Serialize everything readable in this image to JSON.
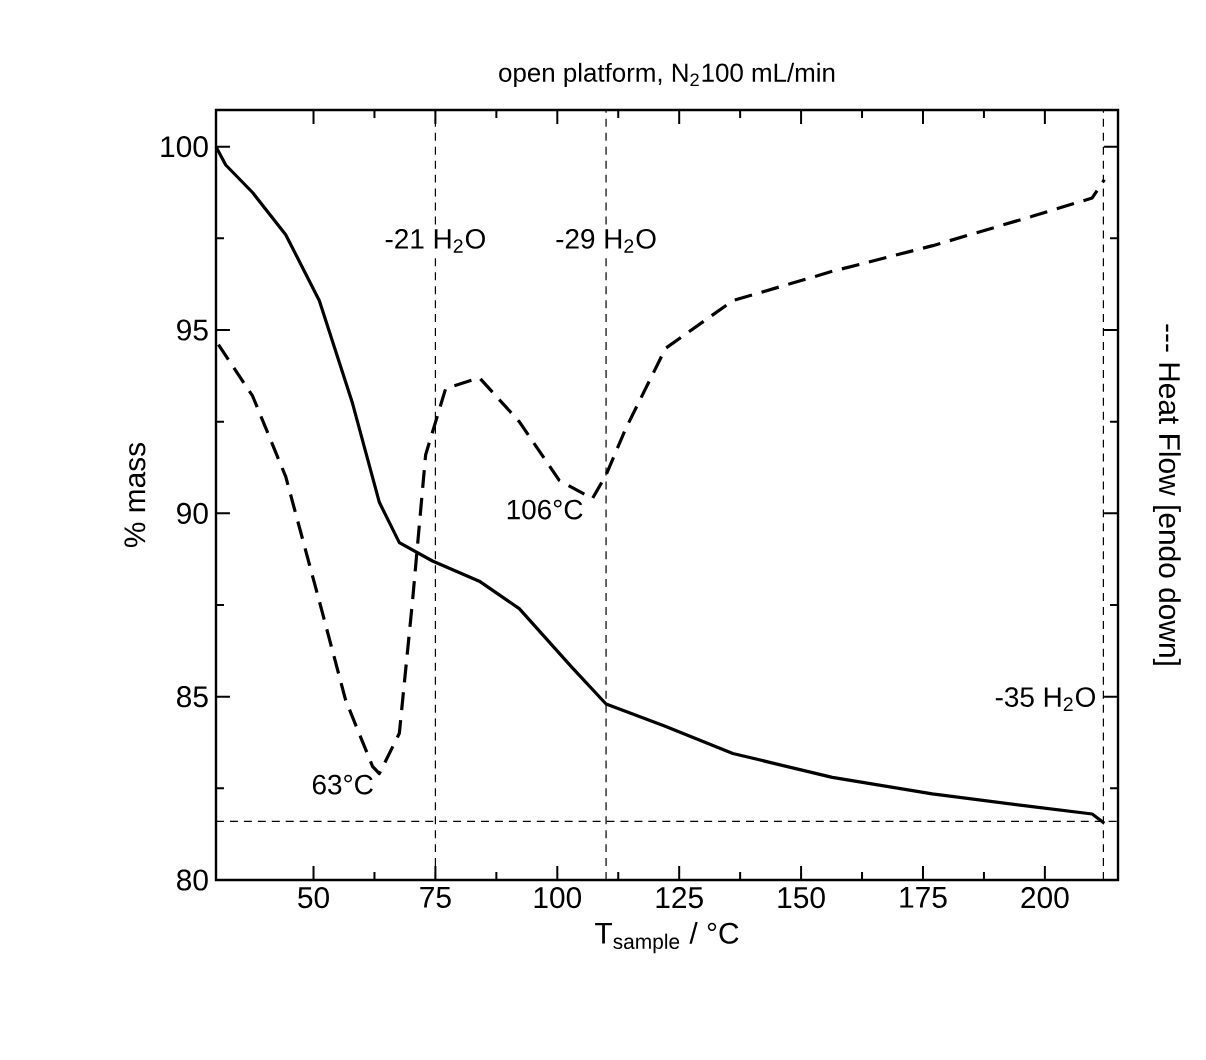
{
  "chart_data": {
    "type": "line",
    "title": "open platform, N$_{2}$100 mL/min",
    "xlabel": "T$_{sample}$ / °C",
    "ylabel": "% mass",
    "y2label": "--- Heat Flow [endo down]",
    "xlim": [
      30,
      215
    ],
    "ylim": [
      80,
      101
    ],
    "xticks": [
      50,
      75,
      100,
      125,
      150,
      175,
      200
    ],
    "yticks": [
      80,
      85,
      90,
      95,
      100
    ],
    "series": [
      {
        "color": "#000000",
        "line_style": "solid",
        "x": [
          30,
          32,
          37.5,
          44.3,
          51.2,
          58,
          63.5,
          67.6,
          74.4,
          84,
          92.2,
          103,
          110,
          122,
          136,
          156.4,
          176.9,
          197.4,
          209.7,
          212.2
        ],
        "values": [
          100,
          99.5,
          98.75,
          97.6,
          95.8,
          93.0,
          90.3,
          89.2,
          88.7,
          88.15,
          87.4,
          85.8,
          84.8,
          84.2,
          83.45,
          82.8,
          82.35,
          82.0,
          81.8,
          81.55
        ]
      },
      {
        "color": "#000000",
        "line_style": "dashed",
        "x": [
          30.5,
          37.5,
          44.3,
          51.2,
          56.6,
          62.1,
          63.5,
          67.6,
          70.3,
          73,
          77.1,
          84,
          92.2,
          100.4,
          107.2,
          110,
          114,
          122.2,
          136,
          156.4,
          177,
          197.4,
          209.7,
          212.2
        ],
        "values": [
          94.6,
          93.2,
          91.0,
          87.6,
          84.9,
          83.1,
          82.9,
          84.0,
          87.6,
          91.6,
          93.4,
          93.7,
          92.5,
          90.9,
          90.4,
          91.05,
          92.3,
          94.5,
          95.8,
          96.6,
          97.3,
          98.1,
          98.6,
          99.1
        ]
      }
    ],
    "ref_lines": [
      {
        "axis": "x",
        "value": 75,
        "label": "-21 H$_{2}$O",
        "line_style": "dashed"
      },
      {
        "axis": "x",
        "value": 110,
        "label": "-29 H$_{2}$O",
        "line_style": "dashed"
      },
      {
        "axis": "x",
        "value": 212,
        "label": "-35 H$_{2}$O",
        "line_style": "dashed"
      },
      {
        "axis": "y",
        "value": 81.6,
        "line_style": "dashed"
      }
    ],
    "annotations": [
      {
        "text": "63°C",
        "x": 63,
        "y": 82.9
      },
      {
        "text": "106°C",
        "x": 106,
        "y": 90.4
      }
    ]
  }
}
